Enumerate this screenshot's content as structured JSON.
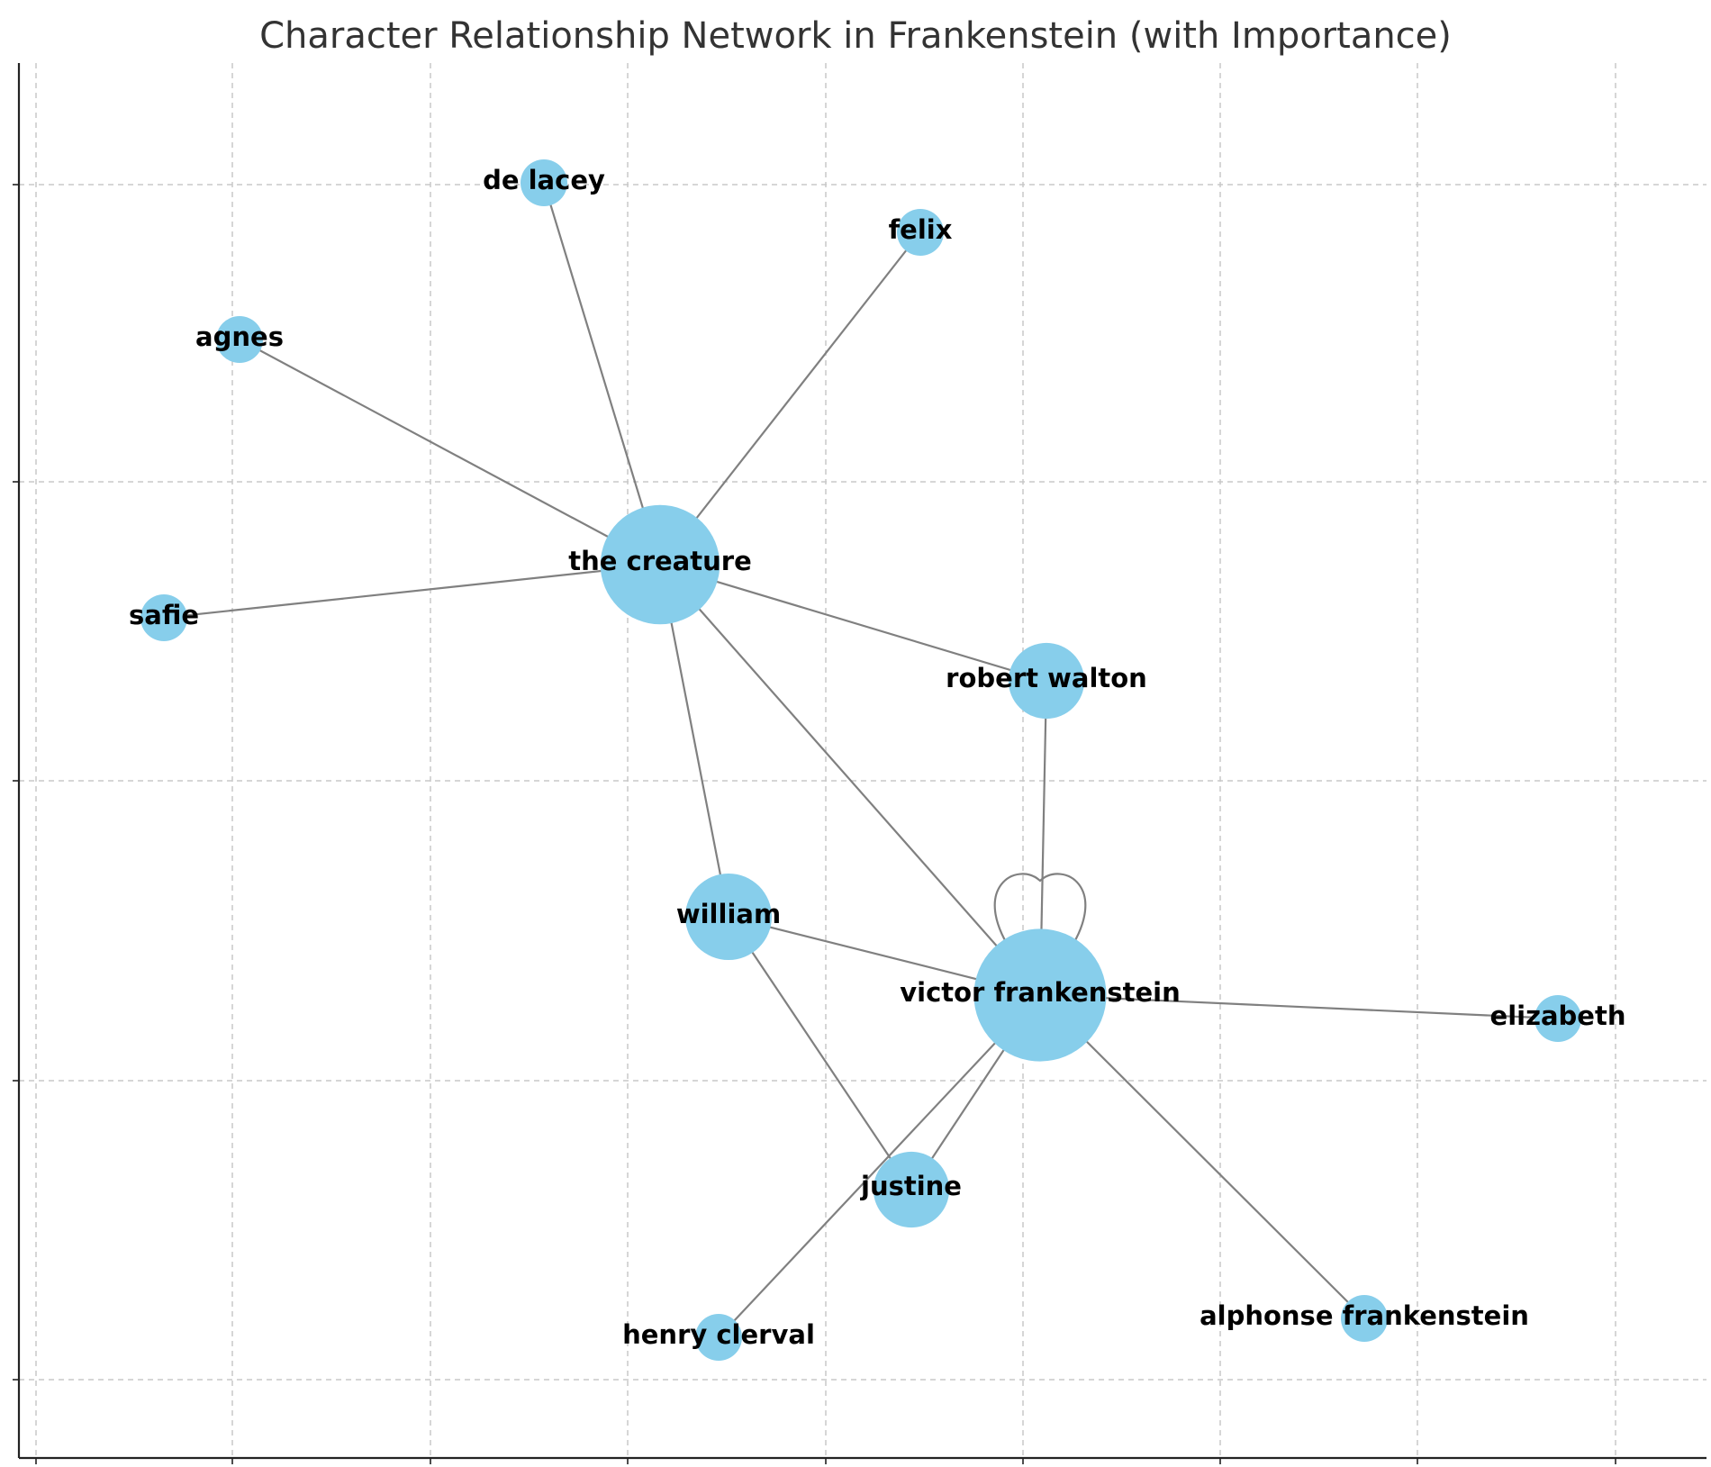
{
  "chart_data": {
    "type": "network",
    "title": "Character Relationship Network in Frankenstein (with Importance)",
    "grid": true,
    "nodes": [
      {
        "id": "victor frankenstein",
        "importance": 10
      },
      {
        "id": "the creature",
        "importance": 8
      },
      {
        "id": "robert walton",
        "importance": 3
      },
      {
        "id": "william",
        "importance": 4
      },
      {
        "id": "justine",
        "importance": 3
      },
      {
        "id": "elizabeth",
        "importance": 1
      },
      {
        "id": "alphonse frankenstein",
        "importance": 1
      },
      {
        "id": "henry clerval",
        "importance": 1
      },
      {
        "id": "de lacey",
        "importance": 1
      },
      {
        "id": "felix",
        "importance": 1
      },
      {
        "id": "agnes",
        "importance": 1
      },
      {
        "id": "safie",
        "importance": 1
      }
    ],
    "edges": [
      [
        "the creature",
        "de lacey"
      ],
      [
        "the creature",
        "felix"
      ],
      [
        "the creature",
        "agnes"
      ],
      [
        "the creature",
        "safie"
      ],
      [
        "the creature",
        "robert walton"
      ],
      [
        "the creature",
        "william"
      ],
      [
        "the creature",
        "victor frankenstein"
      ],
      [
        "robert walton",
        "victor frankenstein"
      ],
      [
        "william",
        "victor frankenstein"
      ],
      [
        "william",
        "justine"
      ],
      [
        "victor frankenstein",
        "justine"
      ],
      [
        "victor frankenstein",
        "henry clerval"
      ],
      [
        "victor frankenstein",
        "elizabeth"
      ],
      [
        "victor frankenstein",
        "alphonse frankenstein"
      ],
      [
        "victor frankenstein",
        "victor frankenstein"
      ]
    ],
    "colors": {
      "node": "#87ceeb",
      "edge": "#808080",
      "label": "#000000",
      "title": "#333333",
      "grid": "#c8c8c8"
    }
  }
}
